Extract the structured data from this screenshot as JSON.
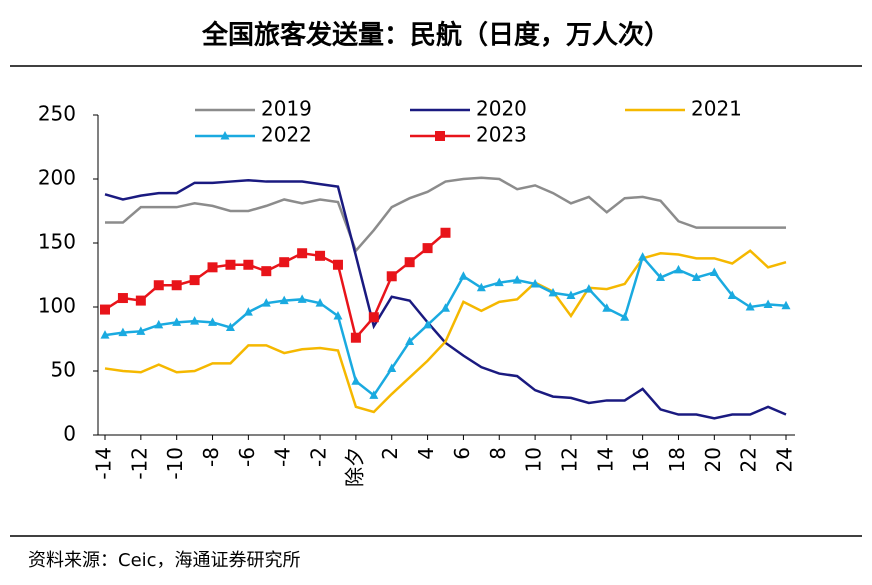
{
  "chart_data": {
    "type": "line",
    "title": "全国旅客发送量：民航（日度，万人次）",
    "source": "资料来源：Ceic，海通证券研究所",
    "x": [
      -14,
      -13,
      -12,
      -11,
      -10,
      -9,
      -8,
      -7,
      -6,
      -5,
      -4,
      -3,
      -2,
      -1,
      0,
      1,
      2,
      3,
      4,
      5,
      6,
      7,
      8,
      9,
      10,
      11,
      12,
      13,
      14,
      15,
      16,
      17,
      18,
      19,
      20,
      21,
      22,
      23,
      24
    ],
    "xlim": [
      -14,
      24
    ],
    "xticks": [
      -14,
      -12,
      -10,
      -8,
      -6,
      -4,
      -2,
      {
        "value": 0,
        "label": "除夕"
      },
      2,
      4,
      6,
      8,
      10,
      12,
      14,
      16,
      18,
      20,
      22,
      24
    ],
    "ylim": [
      0,
      250
    ],
    "yticks": [
      0,
      50,
      100,
      150,
      200,
      250
    ],
    "legend": "top",
    "series": [
      {
        "name": "2019",
        "color": "#8c8c8c",
        "marker": "none",
        "values": [
          166,
          166,
          178,
          178,
          178,
          181,
          179,
          175,
          175,
          179,
          184,
          181,
          184,
          182,
          144,
          160,
          178,
          185,
          190,
          198,
          200,
          201,
          200,
          192,
          195,
          189,
          181,
          186,
          174,
          185,
          186,
          183,
          167,
          162,
          162,
          162,
          162,
          162,
          162
        ]
      },
      {
        "name": "2020",
        "color": "#1a1a80",
        "marker": "none",
        "values": [
          188,
          184,
          187,
          189,
          189,
          197,
          197,
          198,
          199,
          198,
          198,
          198,
          196,
          194,
          140,
          85,
          108,
          105,
          88,
          72,
          62,
          53,
          48,
          46,
          35,
          30,
          29,
          25,
          27,
          27,
          36,
          20,
          16,
          16,
          13,
          16,
          16,
          22,
          16
        ]
      },
      {
        "name": "2021",
        "color": "#f5b800",
        "marker": "none",
        "values": [
          52,
          50,
          49,
          55,
          49,
          50,
          56,
          56,
          70,
          70,
          64,
          67,
          68,
          66,
          22,
          18,
          32,
          45,
          58,
          73,
          104,
          97,
          104,
          106,
          119,
          112,
          93,
          115,
          114,
          118,
          138,
          142,
          141,
          138,
          138,
          134,
          144,
          131,
          135
        ]
      },
      {
        "name": "2022",
        "color": "#1aaae0",
        "marker": "triangle",
        "values": [
          78,
          80,
          81,
          86,
          88,
          89,
          88,
          84,
          96,
          103,
          105,
          106,
          103,
          93,
          42,
          31,
          52,
          73,
          86,
          99,
          124,
          115,
          119,
          121,
          118,
          111,
          109,
          114,
          99,
          92,
          139,
          123,
          129,
          123,
          127,
          109,
          100,
          102,
          101
        ]
      },
      {
        "name": "2023",
        "color": "#e8141a",
        "marker": "square",
        "values": [
          98,
          107,
          105,
          117,
          117,
          121,
          131,
          133,
          133,
          128,
          135,
          142,
          140,
          133,
          76,
          92,
          124,
          135,
          146,
          158,
          null,
          null,
          null,
          null,
          null,
          null,
          null,
          null,
          null,
          null,
          null,
          null,
          null,
          null,
          null,
          null,
          null,
          null,
          null
        ]
      }
    ]
  }
}
